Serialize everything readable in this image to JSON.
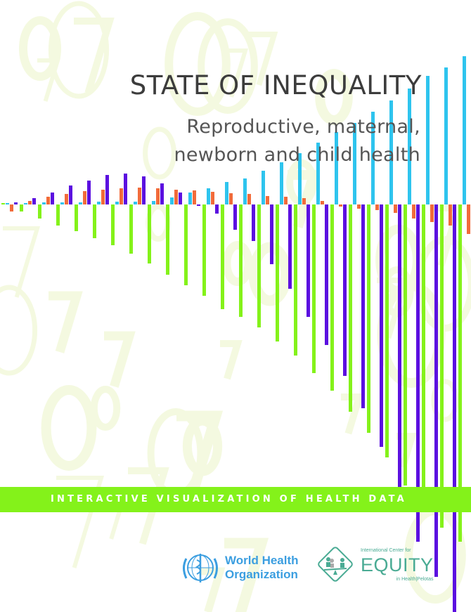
{
  "cover": {
    "title": "STATE OF INEQUALITY",
    "subtitle_line1": "Reproductive, maternal,",
    "subtitle_line2": "newborn and child health",
    "band_text": "INTERACTIVE VISUALIZATION OF HEALTH DATA"
  },
  "logos": {
    "who": {
      "line1": "World Health",
      "line2": "Organization",
      "icon": "who-emblem-icon"
    },
    "equity": {
      "top": "International Center for",
      "main": "EQUITY",
      "bottom": "in Health|Pelotas",
      "icon": "equity-scale-icon"
    }
  },
  "colors": {
    "green": "#84f21a",
    "blue": "#2ec4ee",
    "orange": "#f26b3a",
    "purple": "#5b0fe0",
    "background_digits": "#f4f9e0",
    "who_blue": "#3b9ee0",
    "equity_teal": "#4aab94"
  },
  "background_digits": "5697 9716 48 9 4 2574102 3 4 196 9 2 19 3 6 8 35 2 1 8 3518 0 5 2 8 5 1 2 0 1 5 3 7 8 7 53 3 1 7 2 0 4 7 0"
}
